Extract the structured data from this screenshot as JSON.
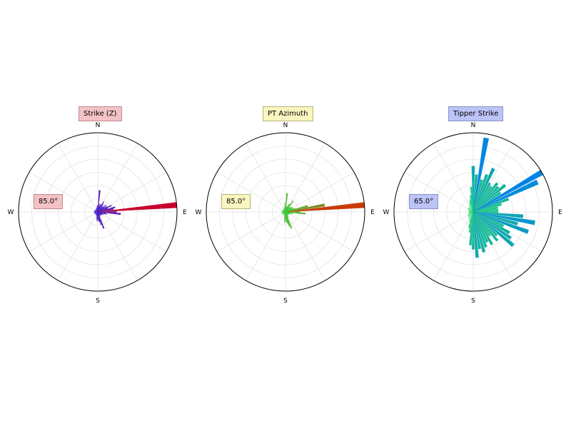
{
  "chart_data": [
    {
      "type": "polar-bar",
      "title": "Strike (Z)",
      "title_box_color": "#f4c2c6",
      "title_box_border": "#c08a8f",
      "angle_label": "85.0°",
      "angle_box_color": "#f4c2c6",
      "angle_box_border": "#c08a8f",
      "compass": [
        "N",
        "E",
        "S",
        "W"
      ],
      "rmax": 19,
      "grid": true,
      "bar_width_deg": 4,
      "color_low": "#3b1fd6",
      "color_high": "#c8002d",
      "bars": [
        {
          "azimuth": 0,
          "value": 1.5
        },
        {
          "azimuth": 5,
          "value": 5.2
        },
        {
          "azimuth": 10,
          "value": 2.0
        },
        {
          "azimuth": 15,
          "value": 1.4
        },
        {
          "azimuth": 20,
          "value": 2.0
        },
        {
          "azimuth": 25,
          "value": 1.8
        },
        {
          "azimuth": 30,
          "value": 2.8
        },
        {
          "azimuth": 35,
          "value": 2.2
        },
        {
          "azimuth": 40,
          "value": 1.5
        },
        {
          "azimuth": 45,
          "value": 1.8
        },
        {
          "azimuth": 50,
          "value": 2.6
        },
        {
          "azimuth": 55,
          "value": 2.0
        },
        {
          "azimuth": 60,
          "value": 2.6
        },
        {
          "azimuth": 65,
          "value": 3.6
        },
        {
          "azimuth": 70,
          "value": 2.5
        },
        {
          "azimuth": 75,
          "value": 4.3
        },
        {
          "azimuth": 80,
          "value": 3.8
        },
        {
          "azimuth": 85,
          "value": 19.0
        },
        {
          "azimuth": 90,
          "value": 4.5
        },
        {
          "azimuth": 95,
          "value": 5.5
        },
        {
          "azimuth": 100,
          "value": 2.0
        },
        {
          "azimuth": 105,
          "value": 2.2
        },
        {
          "azimuth": 110,
          "value": 1.2
        },
        {
          "azimuth": 115,
          "value": 1.5
        },
        {
          "azimuth": 120,
          "value": 1.2
        },
        {
          "azimuth": 125,
          "value": 1.1
        },
        {
          "azimuth": 130,
          "value": 1.2
        },
        {
          "azimuth": 135,
          "value": 1.0
        },
        {
          "azimuth": 140,
          "value": 1.0
        },
        {
          "azimuth": 145,
          "value": 1.0
        },
        {
          "azimuth": 150,
          "value": 1.0
        },
        {
          "azimuth": 155,
          "value": 1.2
        },
        {
          "azimuth": 160,
          "value": 4.2
        },
        {
          "azimuth": 165,
          "value": 3.2
        },
        {
          "azimuth": 170,
          "value": 2.5
        },
        {
          "azimuth": 175,
          "value": 2.2
        },
        {
          "azimuth": 180,
          "value": 1.8
        },
        {
          "azimuth": 185,
          "value": 2.2
        },
        {
          "azimuth": 190,
          "value": 1.6
        },
        {
          "azimuth": 195,
          "value": 1.0
        },
        {
          "azimuth": 200,
          "value": 1.0
        },
        {
          "azimuth": 210,
          "value": 0.8
        },
        {
          "azimuth": 220,
          "value": 0.8
        },
        {
          "azimuth": 230,
          "value": 0.8
        },
        {
          "azimuth": 240,
          "value": 0.8
        },
        {
          "azimuth": 250,
          "value": 0.9
        },
        {
          "azimuth": 260,
          "value": 0.9
        },
        {
          "azimuth": 270,
          "value": 1.0
        },
        {
          "azimuth": 280,
          "value": 0.8
        },
        {
          "azimuth": 290,
          "value": 0.8
        },
        {
          "azimuth": 300,
          "value": 0.8
        },
        {
          "azimuth": 310,
          "value": 0.8
        },
        {
          "azimuth": 320,
          "value": 0.8
        },
        {
          "azimuth": 330,
          "value": 0.8
        },
        {
          "azimuth": 340,
          "value": 0.9
        },
        {
          "azimuth": 345,
          "value": 1.0
        },
        {
          "azimuth": 350,
          "value": 1.2
        },
        {
          "azimuth": 355,
          "value": 1.6
        }
      ]
    },
    {
      "type": "polar-bar",
      "title": "PT Azimuth",
      "title_box_color": "#faf6c0",
      "title_box_border": "#b8b27a",
      "angle_label": "85.0°",
      "angle_box_color": "#faf6c0",
      "angle_box_border": "#b8b27a",
      "compass": [
        "N",
        "E",
        "S",
        "W"
      ],
      "rmax": 19,
      "grid": true,
      "bar_width_deg": 4,
      "color_low": "#2ed63b",
      "color_high": "#c83a00",
      "bars": [
        {
          "azimuth": 0,
          "value": 1.2
        },
        {
          "azimuth": 5,
          "value": 4.5
        },
        {
          "azimuth": 10,
          "value": 1.5
        },
        {
          "azimuth": 15,
          "value": 1.2
        },
        {
          "azimuth": 20,
          "value": 1.5
        },
        {
          "azimuth": 25,
          "value": 2.0
        },
        {
          "azimuth": 30,
          "value": 2.2
        },
        {
          "azimuth": 35,
          "value": 3.2
        },
        {
          "azimuth": 40,
          "value": 1.5
        },
        {
          "azimuth": 45,
          "value": 1.5
        },
        {
          "azimuth": 50,
          "value": 1.8
        },
        {
          "azimuth": 55,
          "value": 2.0
        },
        {
          "azimuth": 60,
          "value": 1.8
        },
        {
          "azimuth": 65,
          "value": 2.0
        },
        {
          "azimuth": 70,
          "value": 2.5
        },
        {
          "azimuth": 75,
          "value": 5.5
        },
        {
          "azimuth": 80,
          "value": 9.5
        },
        {
          "azimuth": 85,
          "value": 19.0
        },
        {
          "azimuth": 90,
          "value": 3.5
        },
        {
          "azimuth": 95,
          "value": 4.8
        },
        {
          "azimuth": 100,
          "value": 1.5
        },
        {
          "azimuth": 105,
          "value": 1.8
        },
        {
          "azimuth": 110,
          "value": 1.0
        },
        {
          "azimuth": 115,
          "value": 1.2
        },
        {
          "azimuth": 120,
          "value": 1.0
        },
        {
          "azimuth": 125,
          "value": 1.0
        },
        {
          "azimuth": 130,
          "value": 1.0
        },
        {
          "azimuth": 135,
          "value": 0.9
        },
        {
          "azimuth": 140,
          "value": 0.9
        },
        {
          "azimuth": 145,
          "value": 0.9
        },
        {
          "azimuth": 150,
          "value": 1.2
        },
        {
          "azimuth": 155,
          "value": 1.5
        },
        {
          "azimuth": 160,
          "value": 4.2
        },
        {
          "azimuth": 165,
          "value": 3.5
        },
        {
          "azimuth": 170,
          "value": 2.8
        },
        {
          "azimuth": 175,
          "value": 2.4
        },
        {
          "azimuth": 180,
          "value": 2.0
        },
        {
          "azimuth": 185,
          "value": 2.6
        },
        {
          "azimuth": 190,
          "value": 1.6
        },
        {
          "azimuth": 195,
          "value": 1.0
        },
        {
          "azimuth": 200,
          "value": 0.8
        },
        {
          "azimuth": 210,
          "value": 0.8
        },
        {
          "azimuth": 220,
          "value": 0.8
        },
        {
          "azimuth": 230,
          "value": 0.8
        },
        {
          "azimuth": 240,
          "value": 0.8
        },
        {
          "azimuth": 250,
          "value": 0.9
        },
        {
          "azimuth": 260,
          "value": 0.9
        },
        {
          "azimuth": 270,
          "value": 1.0
        },
        {
          "azimuth": 280,
          "value": 0.8
        },
        {
          "azimuth": 290,
          "value": 0.8
        },
        {
          "azimuth": 300,
          "value": 0.8
        },
        {
          "azimuth": 310,
          "value": 0.8
        },
        {
          "azimuth": 320,
          "value": 0.8
        },
        {
          "azimuth": 330,
          "value": 0.8
        },
        {
          "azimuth": 340,
          "value": 0.9
        },
        {
          "azimuth": 345,
          "value": 1.0
        },
        {
          "azimuth": 350,
          "value": 1.2
        },
        {
          "azimuth": 355,
          "value": 2.2
        }
      ]
    },
    {
      "type": "polar-bar",
      "title": "Tipper Strike",
      "title_box_color": "#bcc3f7",
      "title_box_border": "#8a91c4",
      "angle_label": "65.0°",
      "angle_box_color": "#bcc3f7",
      "angle_box_border": "#8a91c4",
      "compass": [
        "N",
        "E",
        "S",
        "W"
      ],
      "rmax": 19,
      "grid": true,
      "bar_width_deg": 4,
      "color_low": "#22e05a",
      "color_high": "#0083e6",
      "bars": [
        {
          "azimuth": 0,
          "value": 11.0
        },
        {
          "azimuth": 5,
          "value": 9.0
        },
        {
          "azimuth": 10,
          "value": 18.0
        },
        {
          "azimuth": 15,
          "value": 8.0
        },
        {
          "azimuth": 20,
          "value": 9.5
        },
        {
          "azimuth": 25,
          "value": 11.5
        },
        {
          "azimuth": 30,
          "value": 8.0
        },
        {
          "azimuth": 35,
          "value": 7.5
        },
        {
          "azimuth": 40,
          "value": 9.0
        },
        {
          "azimuth": 45,
          "value": 8.5
        },
        {
          "azimuth": 50,
          "value": 10.0
        },
        {
          "azimuth": 55,
          "value": 8.0
        },
        {
          "azimuth": 60,
          "value": 19.0
        },
        {
          "azimuth": 65,
          "value": 17.0
        },
        {
          "azimuth": 70,
          "value": 9.0
        },
        {
          "azimuth": 75,
          "value": 7.0
        },
        {
          "azimuth": 80,
          "value": 6.0
        },
        {
          "azimuth": 85,
          "value": 6.0
        },
        {
          "azimuth": 90,
          "value": 6.0
        },
        {
          "azimuth": 95,
          "value": 12.0
        },
        {
          "azimuth": 100,
          "value": 15.0
        },
        {
          "azimuth": 105,
          "value": 11.0
        },
        {
          "azimuth": 110,
          "value": 14.0
        },
        {
          "azimuth": 115,
          "value": 8.0
        },
        {
          "azimuth": 120,
          "value": 10.0
        },
        {
          "azimuth": 125,
          "value": 11.0
        },
        {
          "azimuth": 130,
          "value": 12.5
        },
        {
          "azimuth": 135,
          "value": 8.0
        },
        {
          "azimuth": 140,
          "value": 9.0
        },
        {
          "azimuth": 145,
          "value": 7.0
        },
        {
          "azimuth": 150,
          "value": 9.0
        },
        {
          "azimuth": 155,
          "value": 8.0
        },
        {
          "azimuth": 160,
          "value": 9.0
        },
        {
          "azimuth": 165,
          "value": 10.0
        },
        {
          "azimuth": 170,
          "value": 9.0
        },
        {
          "azimuth": 175,
          "value": 11.0
        },
        {
          "azimuth": 180,
          "value": 9.0
        },
        {
          "azimuth": 185,
          "value": 8.0
        },
        {
          "azimuth": 190,
          "value": 5.0
        },
        {
          "azimuth": 195,
          "value": 4.0
        },
        {
          "azimuth": 200,
          "value": 2.5
        },
        {
          "azimuth": 210,
          "value": 2.0
        },
        {
          "azimuth": 220,
          "value": 1.8
        },
        {
          "azimuth": 230,
          "value": 1.5
        },
        {
          "azimuth": 240,
          "value": 1.5
        },
        {
          "azimuth": 250,
          "value": 1.2
        },
        {
          "azimuth": 260,
          "value": 1.0
        },
        {
          "azimuth": 270,
          "value": 1.2
        },
        {
          "azimuth": 280,
          "value": 1.0
        },
        {
          "azimuth": 290,
          "value": 1.2
        },
        {
          "azimuth": 300,
          "value": 1.5
        },
        {
          "azimuth": 310,
          "value": 1.5
        },
        {
          "azimuth": 320,
          "value": 1.5
        },
        {
          "azimuth": 330,
          "value": 2.0
        },
        {
          "azimuth": 340,
          "value": 2.5
        },
        {
          "azimuth": 345,
          "value": 3.0
        },
        {
          "azimuth": 350,
          "value": 4.0
        },
        {
          "azimuth": 355,
          "value": 6.0
        }
      ]
    }
  ]
}
